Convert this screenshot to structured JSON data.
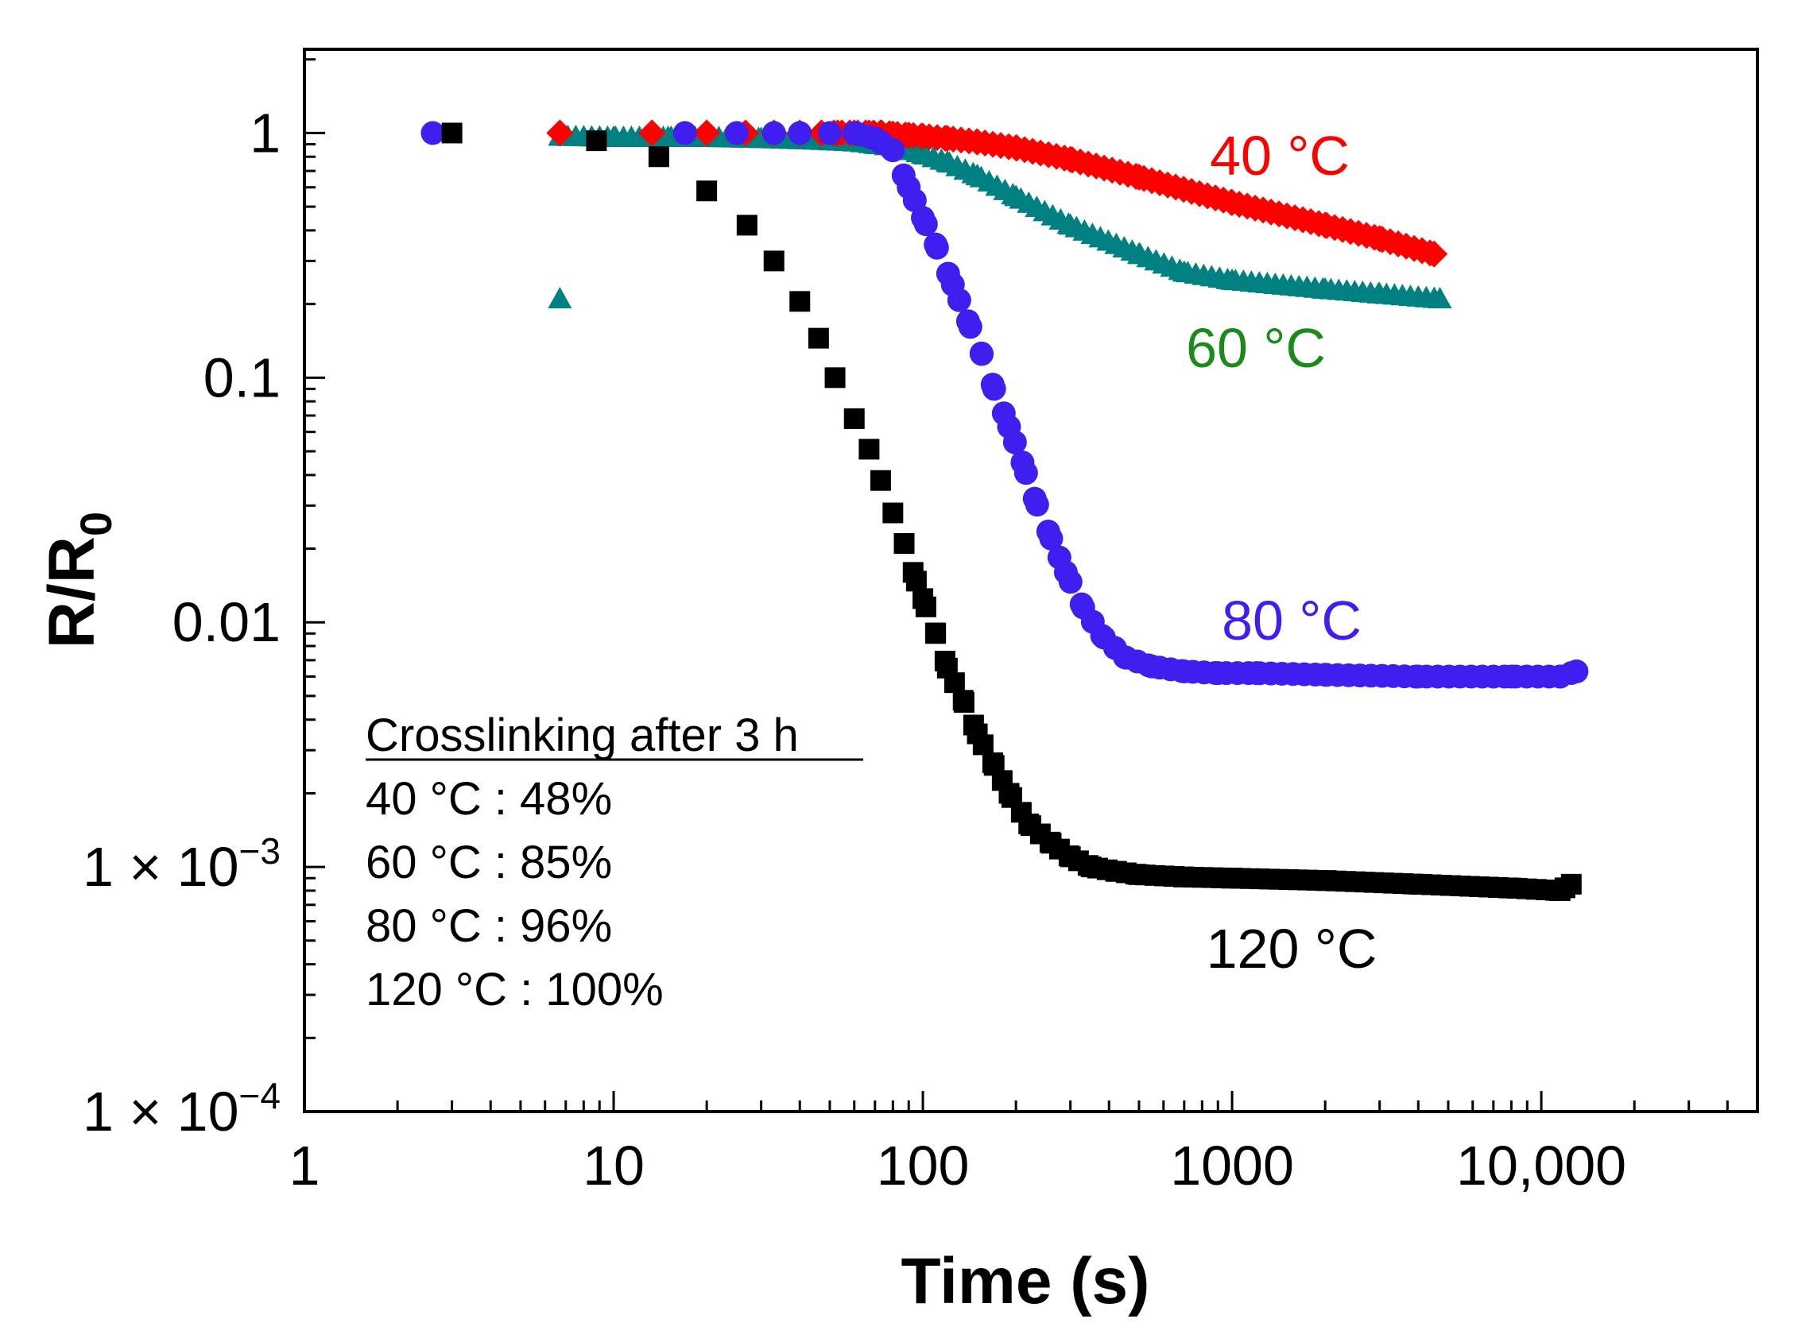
{
  "chart_data": {
    "type": "scatter",
    "title": "",
    "xlabel": "Time (s)",
    "ylabel": "R/R",
    "ylabel_sub": "0",
    "x_scale": "log",
    "y_scale": "log",
    "xlim": [
      1,
      50000
    ],
    "ylim": [
      0.0001,
      2.2
    ],
    "x_ticks": [
      {
        "value": 1,
        "label": "1"
      },
      {
        "value": 10,
        "label": "10"
      },
      {
        "value": 100,
        "label": "100"
      },
      {
        "value": 1000,
        "label": "1000"
      },
      {
        "value": 10000,
        "label": "10,000"
      }
    ],
    "y_ticks": [
      {
        "value": 1,
        "label": "1",
        "base": "",
        "exp": ""
      },
      {
        "value": 0.1,
        "label": "0.1",
        "base": "",
        "exp": ""
      },
      {
        "value": 0.01,
        "label": "0.01",
        "base": "",
        "exp": ""
      },
      {
        "value": 0.001,
        "label": "",
        "base": "1 × 10",
        "exp": "−3"
      },
      {
        "value": 0.0001,
        "label": "",
        "base": "1 × 10",
        "exp": "−4"
      }
    ],
    "series": [
      {
        "name": "40 °C",
        "label": "40 °C",
        "color": "#ff0000",
        "marker": "diamond",
        "x": [
          6.7,
          13.3,
          20,
          26.7,
          33,
          40,
          47,
          53,
          60,
          67,
          73,
          80,
          90,
          100,
          120,
          150,
          200,
          300,
          500,
          1000,
          2000,
          3000,
          4500
        ],
        "y": [
          1,
          1,
          1,
          1,
          1,
          1,
          1,
          1,
          1,
          1,
          1,
          0.99,
          0.98,
          0.97,
          0.95,
          0.92,
          0.87,
          0.78,
          0.66,
          0.52,
          0.42,
          0.37,
          0.32
        ]
      },
      {
        "name": "60 °C",
        "label": "60 °C",
        "color": "#008080",
        "label_color": "#1a8a1a",
        "marker": "triangle",
        "x": [
          6.7,
          10,
          15,
          20,
          30,
          40,
          50,
          60,
          70,
          80,
          90,
          100,
          120,
          150,
          200,
          300,
          500,
          700,
          1000,
          2000,
          3000,
          4700
        ],
        "y": [
          0.97,
          0.96,
          0.96,
          0.96,
          0.95,
          0.94,
          0.93,
          0.92,
          0.9,
          0.88,
          0.85,
          0.82,
          0.76,
          0.67,
          0.55,
          0.42,
          0.32,
          0.27,
          0.25,
          0.23,
          0.22,
          0.21
        ]
      },
      {
        "name": "80 °C",
        "label": "80 °C",
        "color": "#3f1ff0",
        "marker": "circle",
        "x": [
          2.6,
          17,
          25,
          33,
          40,
          50,
          60,
          70,
          80,
          90,
          100,
          110,
          125,
          140,
          155,
          170,
          190,
          210,
          230,
          260,
          290,
          330,
          380,
          450,
          550,
          700,
          900,
          1200,
          2000,
          4000,
          8000,
          11500,
          13000
        ],
        "y": [
          1,
          1,
          1,
          1,
          1,
          1,
          1,
          0.95,
          0.85,
          0.6,
          0.45,
          0.35,
          0.24,
          0.17,
          0.125,
          0.09,
          0.063,
          0.045,
          0.032,
          0.022,
          0.016,
          0.0115,
          0.0088,
          0.0072,
          0.0066,
          0.0063,
          0.0062,
          0.0062,
          0.0061,
          0.006,
          0.006,
          0.006,
          0.0063
        ]
      },
      {
        "name": "120 °C",
        "label": "120 °C",
        "color": "#000000",
        "marker": "square",
        "x": [
          3,
          8.8,
          14,
          20,
          27,
          33,
          40,
          46,
          52,
          60,
          67,
          73,
          80,
          87,
          93,
          100,
          110,
          120,
          135,
          150,
          170,
          190,
          220,
          260,
          300,
          350,
          420,
          500,
          700,
          1000,
          2000,
          4000,
          8000,
          11500,
          12500
        ],
        "y": [
          1,
          0.93,
          0.8,
          0.58,
          0.42,
          0.3,
          0.205,
          0.145,
          0.1,
          0.068,
          0.051,
          0.038,
          0.028,
          0.021,
          0.016,
          0.0125,
          0.009,
          0.0065,
          0.0048,
          0.0035,
          0.0026,
          0.002,
          0.0015,
          0.00125,
          0.0011,
          0.001,
          0.00096,
          0.00093,
          0.00091,
          0.0009,
          0.00088,
          0.00085,
          0.00082,
          0.0008,
          0.00085
        ]
      }
    ],
    "annotation": {
      "heading": "Crosslinking after 3 h",
      "lines": [
        "40 °C : 48%",
        "60 °C : 85%",
        "80 °C : 96%",
        "120 °C : 100%"
      ]
    }
  }
}
